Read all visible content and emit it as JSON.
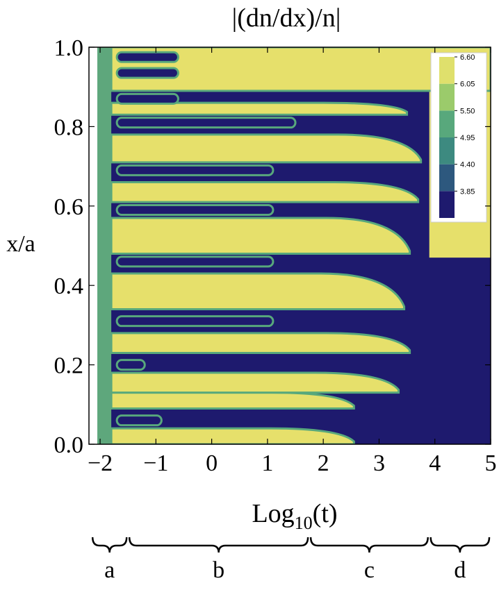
{
  "chart_data": {
    "type": "heatmap",
    "title": "|(dn/dx)/n|",
    "xlabel_main": "Log",
    "xlabel_sub": "10",
    "xlabel_tail": "(t)",
    "ylabel": "x/a",
    "xlim": [
      -2.2,
      5.0
    ],
    "ylim": [
      0.0,
      1.0
    ],
    "x_ticks": [
      -2,
      -1,
      0,
      1,
      2,
      3,
      4,
      5
    ],
    "x_tick_labels": [
      "−2",
      "−1",
      "0",
      "1",
      "2",
      "3",
      "4",
      "5"
    ],
    "y_ticks": [
      0.0,
      0.2,
      0.4,
      0.6,
      0.8,
      1.0
    ],
    "y_tick_labels": [
      "0.0",
      "0.2",
      "0.4",
      "0.6",
      "0.8",
      "1.0"
    ],
    "legend": {
      "position": "top-right",
      "levels": [
        "3.85",
        "4.40",
        "4.95",
        "5.50",
        "6.05",
        "6.60"
      ],
      "colors": [
        "#1e1a6e",
        "#2d587e",
        "#3d8a80",
        "#58a87c",
        "#9bcb6b",
        "#dfe06c"
      ]
    },
    "colors": {
      "high": "#e6e06b",
      "low": "#1e1a6e",
      "edge": "#58a87c",
      "initial": "#5ea77c"
    },
    "initial_band_x": [
      -2.05,
      -1.8
    ],
    "x_bracket_ticks": [
      -2.16,
      -1.5,
      1.75,
      3.9,
      5.0
    ],
    "yellow_bands": [
      {
        "y": [
          0.0,
          0.04
        ],
        "end_x": 2.55,
        "curve": 0.02
      },
      {
        "y": [
          0.09,
          0.13
        ],
        "end_x": 2.55,
        "curve": 0.03
      },
      {
        "y": [
          0.13,
          0.18
        ],
        "end_x": 3.35,
        "curve": 0.05
      },
      {
        "y": [
          0.23,
          0.28
        ],
        "end_x": 3.55,
        "curve": 0.08
      },
      {
        "y": [
          0.34,
          0.43
        ],
        "end_x": 3.45,
        "curve": 0.09
      },
      {
        "y": [
          0.48,
          0.57
        ],
        "end_x": 3.55,
        "curve": 0.1
      },
      {
        "y": [
          0.61,
          0.66
        ],
        "end_x": 3.7,
        "curve": 0.12
      },
      {
        "y": [
          0.71,
          0.78
        ],
        "end_x": 3.75,
        "curve": 0.14
      },
      {
        "y": [
          0.83,
          0.86
        ],
        "end_x": 3.5,
        "curve": 0.12
      },
      {
        "y": [
          0.89,
          1.0
        ],
        "end_x": 5.0,
        "curve": 0.0
      }
    ],
    "upper_region": {
      "y": [
        0.47,
        1.0
      ],
      "x_start": 3.9
    },
    "bottom_labels": [
      "a",
      "b",
      "c",
      "d"
    ]
  }
}
